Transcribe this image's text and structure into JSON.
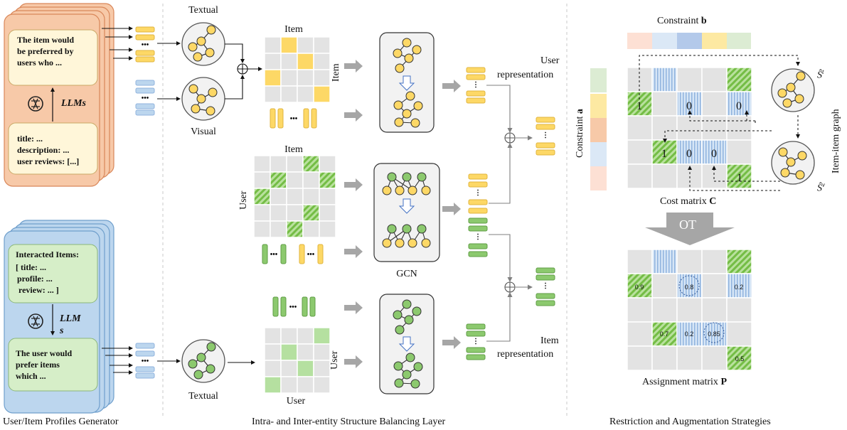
{
  "module1": {
    "title": "User/Item Profiles Generator",
    "item_prompt": [
      "The item would",
      "be preferred by",
      "users who ..."
    ],
    "item_llm_label": "LLMs",
    "item_input": [
      "title: ...",
      "description: ...",
      "user reviews: [...]"
    ],
    "user_input": [
      "Interacted Items:",
      "[ title: ...",
      "profile: ...",
      "review: ... ]"
    ],
    "user_llm_label": [
      "LLM",
      "s"
    ],
    "user_prompt": [
      "The user would",
      "prefer items",
      "which ..."
    ]
  },
  "module2": {
    "title": "Intra- and Inter-entity Structure Balancing Layer",
    "textual_label": "Textual",
    "visual_label": "Visual",
    "item_matrix_top_label": "Item",
    "item_matrix_side_label": "Item",
    "user_matrix_top_label": "Item",
    "user_matrix_side_label": "User",
    "gcn_label": "GCN",
    "bottom_textual_label": "Textual",
    "bottom_matrix_side_label": "User",
    "bottom_matrix_bottom_label": "User",
    "user_representation": [
      "User",
      "representation"
    ],
    "item_representation": [
      "Item",
      "representation"
    ]
  },
  "module3": {
    "title": "Restriction and Augmentation Strategies",
    "constraint_b": "Constraint",
    "constraint_b_bold": "b",
    "constraint_a": "Constraint",
    "constraint_a_bold": "a",
    "cost_matrix": "Cost matrix",
    "cost_matrix_bold": "C",
    "ot_label": "OT",
    "assignment_matrix": "Assignment matrix",
    "assignment_matrix_bold": "P",
    "graph_side_label": "Item-item graph",
    "graph_t_label": "Ŝ",
    "graph_t_sup": "t",
    "graph_v_label": "Ŝ",
    "graph_v_sup": "v",
    "cost_values": [
      "1",
      "0",
      "0",
      "1",
      "0",
      "0",
      "1"
    ],
    "assign_values": [
      "0.9",
      "0.8",
      "0.2",
      "0.7",
      "0.2",
      "0.85",
      "0.5"
    ]
  },
  "colors": {
    "item_card": "#f7c9a8",
    "item_card_border": "#e08a5a",
    "user_card": "#bcd6ee",
    "user_card_border": "#6f9fcc",
    "inner_yellow": "#fff6d9",
    "inner_green": "#d6eec8",
    "yellow": "#fdd866",
    "blue": "#bcd6ee",
    "green": "#8cc96e",
    "grid_gray": "#e3e3e3",
    "arrow_gray": "#a6a6a6"
  }
}
